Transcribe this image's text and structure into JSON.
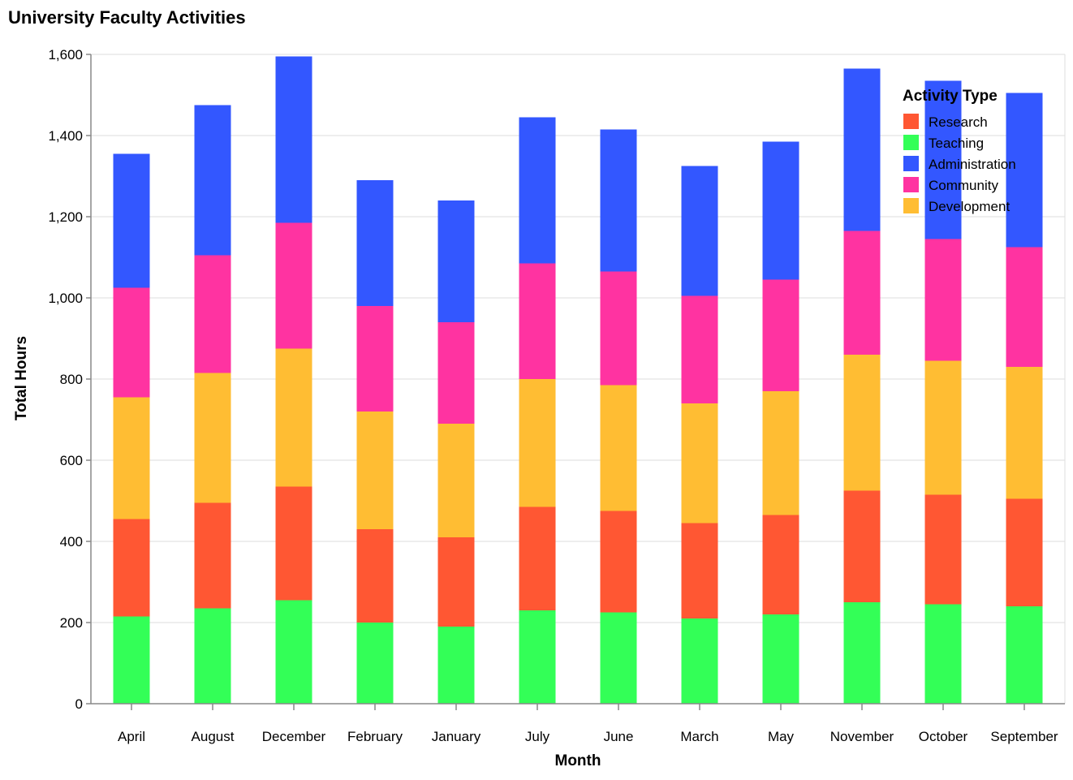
{
  "chart_data": {
    "type": "bar",
    "stacked": true,
    "title": "University Faculty Activities",
    "xlabel": "Month",
    "ylabel": "Total Hours",
    "ylim": [
      0,
      1600
    ],
    "yticks": [
      0,
      200,
      400,
      600,
      800,
      1000,
      1200,
      1400,
      1600
    ],
    "ytick_labels": [
      "0",
      "200",
      "400",
      "600",
      "800",
      "1,000",
      "1,200",
      "1,400",
      "1,600"
    ],
    "grid": true,
    "legend": {
      "title": "Activity Type",
      "placement": "top-right"
    },
    "categories": [
      "April",
      "August",
      "December",
      "February",
      "January",
      "July",
      "June",
      "March",
      "May",
      "November",
      "October",
      "September"
    ],
    "series": [
      {
        "name": "Research",
        "color": "#ff5733",
        "values": [
          240,
          260,
          280,
          230,
          220,
          255,
          250,
          235,
          245,
          275,
          270,
          265
        ]
      },
      {
        "name": "Teaching",
        "color": "#33ff57",
        "values": [
          215,
          235,
          255,
          200,
          190,
          230,
          225,
          210,
          220,
          250,
          245,
          240
        ]
      },
      {
        "name": "Administration",
        "color": "#3357ff",
        "values": [
          330,
          370,
          410,
          310,
          300,
          360,
          350,
          320,
          340,
          400,
          390,
          380
        ]
      },
      {
        "name": "Community",
        "color": "#ff33a1",
        "values": [
          270,
          290,
          310,
          260,
          250,
          285,
          280,
          265,
          275,
          305,
          300,
          295
        ]
      },
      {
        "name": "Development",
        "color": "#ffbd33",
        "values": [
          300,
          320,
          340,
          290,
          280,
          315,
          310,
          295,
          305,
          335,
          330,
          325
        ]
      }
    ],
    "stack_order_bottom_to_top": [
      "Teaching",
      "Research",
      "Development",
      "Community",
      "Administration"
    ]
  }
}
